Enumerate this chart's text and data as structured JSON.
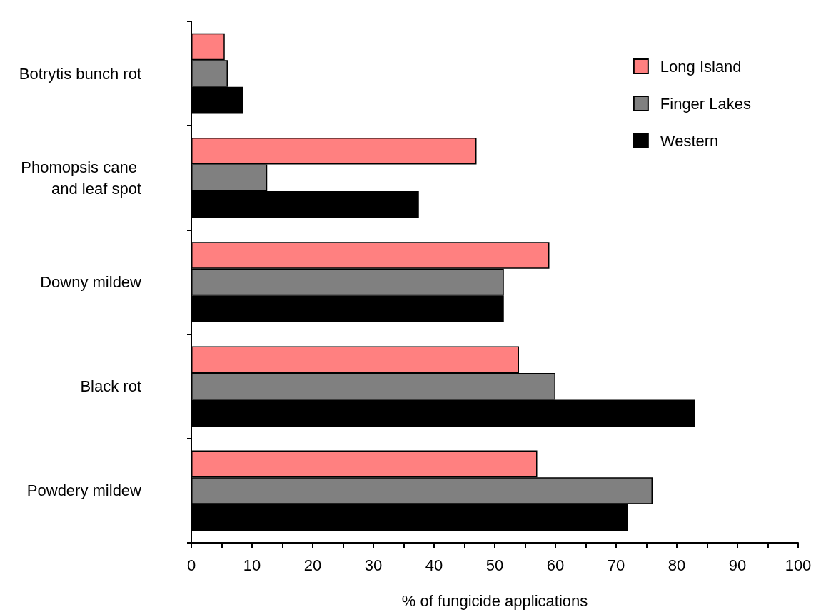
{
  "chart_data": {
    "type": "bar",
    "orientation": "horizontal",
    "categories": [
      "Botrytis bunch rot",
      "Phomopsis cane and leaf spot",
      "Downy mildew",
      "Black rot",
      "Powdery mildew"
    ],
    "series": [
      {
        "name": "Long Island",
        "color": "#ff8080",
        "values": [
          5.5,
          47,
          59,
          54,
          57
        ]
      },
      {
        "name": "Finger Lakes",
        "color": "#808080",
        "values": [
          6,
          12.5,
          51.5,
          60,
          76
        ]
      },
      {
        "name": "Western",
        "color": "#000000",
        "values": [
          8.5,
          37.5,
          51.5,
          83,
          72
        ]
      }
    ],
    "xlabel": "% of fungicide applications",
    "xlim": [
      0,
      100
    ],
    "xticks": [
      0,
      {
        "value": 5,
        "label": null
      },
      10,
      {
        "value": 15,
        "label": null
      },
      20,
      {
        "value": 25,
        "label": null
      },
      30,
      {
        "value": 35,
        "label": null
      },
      40,
      {
        "value": 45,
        "label": null
      },
      50,
      {
        "value": 55,
        "label": null
      },
      60,
      {
        "value": 65,
        "label": null
      },
      70,
      {
        "value": 75,
        "label": null
      },
      80,
      {
        "value": 85,
        "label": null
      },
      90,
      {
        "value": 95,
        "label": null
      },
      100
    ],
    "legend": "top right"
  }
}
